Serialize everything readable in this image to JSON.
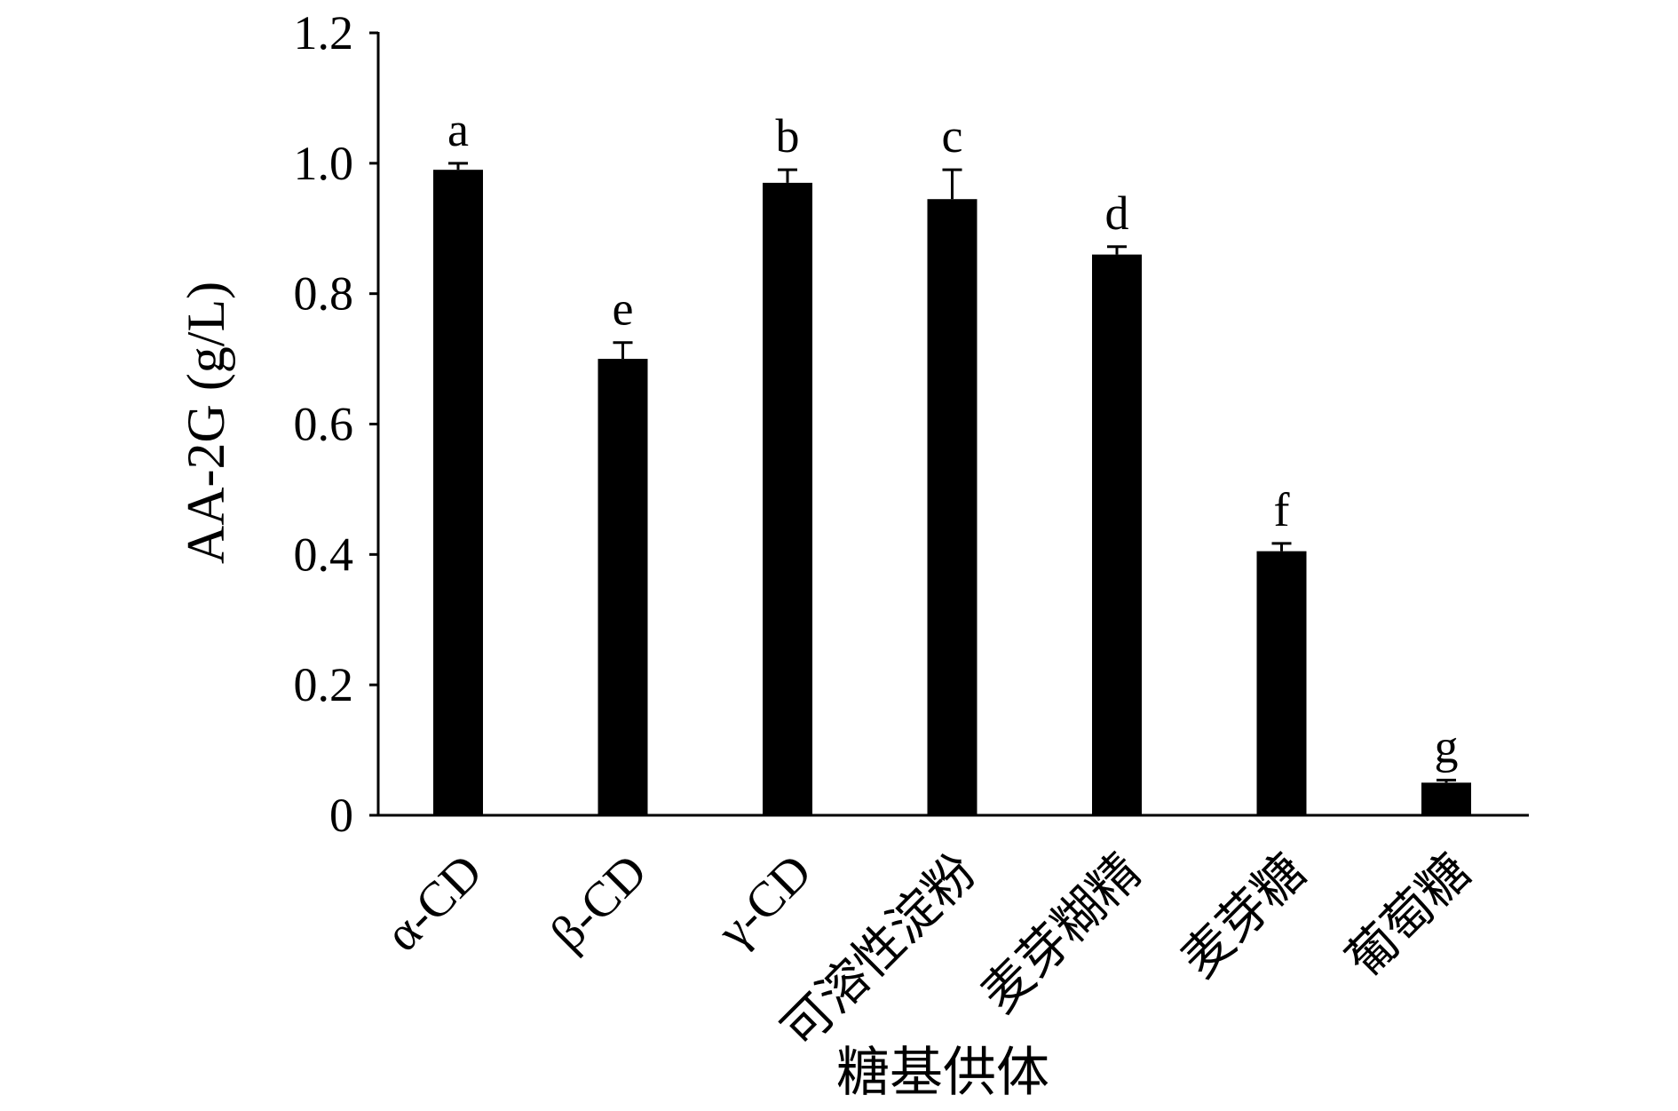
{
  "chart_data": {
    "type": "bar",
    "categories": [
      "α-CD",
      "β-CD",
      "γ-CD",
      "可溶性淀粉",
      "麦芽糊精",
      "麦芽糖",
      "葡萄糖"
    ],
    "values": [
      0.99,
      0.7,
      0.97,
      0.945,
      0.86,
      0.405,
      0.05
    ],
    "errors": [
      0.01,
      0.025,
      0.02,
      0.045,
      0.012,
      0.012,
      0.004
    ],
    "significance_labels": [
      "a",
      "e",
      "b",
      "c",
      "d",
      "f",
      "g"
    ],
    "xlabel": "糖基供体",
    "ylabel": "AA-2G (g/L)",
    "ylim": [
      0,
      1.2
    ],
    "y_ticks": [
      0,
      0.2,
      0.4,
      0.6,
      0.8,
      1.0,
      1.2
    ],
    "y_tick_labels": [
      "0",
      "0.2",
      "0.4",
      "0.6",
      "0.8",
      "1.0",
      "1.2"
    ],
    "grid": false,
    "bar_color": "#000000"
  }
}
